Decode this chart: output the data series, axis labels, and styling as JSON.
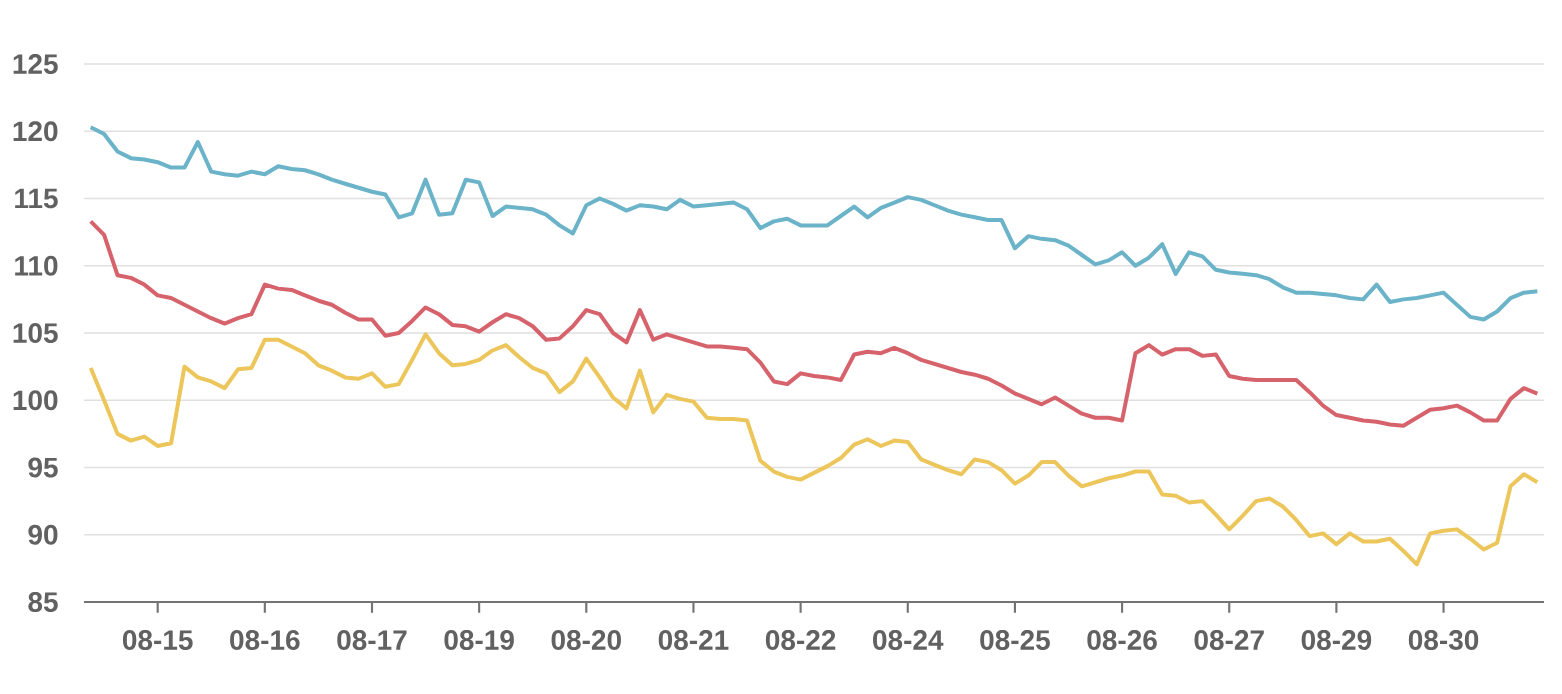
{
  "chart_data": {
    "type": "line",
    "categories": [
      null,
      null,
      null,
      null,
      null,
      "08-15",
      null,
      null,
      null,
      null,
      null,
      null,
      null,
      "08-16",
      null,
      null,
      null,
      null,
      null,
      null,
      null,
      "08-17",
      null,
      null,
      null,
      null,
      null,
      null,
      null,
      "08-19",
      null,
      null,
      null,
      null,
      null,
      null,
      null,
      "08-20",
      null,
      null,
      null,
      null,
      null,
      null,
      null,
      "08-21",
      null,
      null,
      null,
      null,
      null,
      null,
      null,
      "08-22",
      null,
      null,
      null,
      null,
      null,
      null,
      null,
      "08-24",
      null,
      null,
      null,
      null,
      null,
      null,
      null,
      "08-25",
      null,
      null,
      null,
      null,
      null,
      null,
      null,
      "08-26",
      null,
      null,
      null,
      null,
      null,
      null,
      null,
      "08-27",
      null,
      null,
      null,
      null,
      null,
      null,
      null,
      "08-29",
      null,
      null,
      null,
      null,
      null,
      null,
      null,
      "08-30",
      null,
      null,
      null,
      null,
      null,
      null,
      null
    ],
    "ylim": [
      85,
      125
    ],
    "yticks": [
      85,
      90,
      95,
      100,
      105,
      110,
      115,
      120,
      125
    ],
    "grid": "y",
    "series": [
      {
        "color": "#6ab3c8",
        "values": [
          120.3,
          119.8,
          118.5,
          118.0,
          117.9,
          117.7,
          117.3,
          117.3,
          119.2,
          117.0,
          116.8,
          116.7,
          117.0,
          116.8,
          117.4,
          117.2,
          117.1,
          116.8,
          116.4,
          116.1,
          115.8,
          115.5,
          115.3,
          113.6,
          113.9,
          116.4,
          113.8,
          113.9,
          116.4,
          116.2,
          113.7,
          114.4,
          114.3,
          114.2,
          113.8,
          113.0,
          112.4,
          114.5,
          115.0,
          114.6,
          114.1,
          114.5,
          114.4,
          114.2,
          114.9,
          114.4,
          114.5,
          114.6,
          114.7,
          114.2,
          112.8,
          113.3,
          113.5,
          113.0,
          113.0,
          113.0,
          113.7,
          114.4,
          113.6,
          114.3,
          114.7,
          115.1,
          114.9,
          114.5,
          114.1,
          113.8,
          113.6,
          113.4,
          113.4,
          111.3,
          112.2,
          112.0,
          111.9,
          111.5,
          110.8,
          110.1,
          110.4,
          111.0,
          110.0,
          110.6,
          111.6,
          109.4,
          111.0,
          110.7,
          109.7,
          109.5,
          109.4,
          109.3,
          109.0,
          108.4,
          108.0,
          108.0,
          107.9,
          107.8,
          107.6,
          107.5,
          108.6,
          107.3,
          107.5,
          107.6,
          107.8,
          108.0,
          107.1,
          106.2,
          106.0,
          106.6,
          107.6,
          108.0,
          108.1
        ]
      },
      {
        "color": "#d6636b",
        "values": [
          113.3,
          112.3,
          109.3,
          109.1,
          108.6,
          107.8,
          107.6,
          107.1,
          106.6,
          106.1,
          105.7,
          106.1,
          106.4,
          108.6,
          108.3,
          108.2,
          107.8,
          107.4,
          107.1,
          106.5,
          106.0,
          106.0,
          104.8,
          105.0,
          105.9,
          106.9,
          106.4,
          105.6,
          105.5,
          105.1,
          105.8,
          106.4,
          106.1,
          105.5,
          104.5,
          104.6,
          105.5,
          106.7,
          106.4,
          105.0,
          104.3,
          106.7,
          104.5,
          104.9,
          104.6,
          104.3,
          104.0,
          104.0,
          103.9,
          103.8,
          102.8,
          101.4,
          101.2,
          102.0,
          101.8,
          101.7,
          101.5,
          103.4,
          103.6,
          103.5,
          103.9,
          103.5,
          103.0,
          102.7,
          102.4,
          102.1,
          101.9,
          101.6,
          101.1,
          100.5,
          100.1,
          99.7,
          100.2,
          99.6,
          99.0,
          98.7,
          98.7,
          98.5,
          103.5,
          104.1,
          103.4,
          103.8,
          103.8,
          103.3,
          103.4,
          101.8,
          101.6,
          101.5,
          101.5,
          101.5,
          101.5,
          100.6,
          99.6,
          98.9,
          98.7,
          98.5,
          98.4,
          98.2,
          98.1,
          98.7,
          99.3,
          99.4,
          99.6,
          99.1,
          98.5,
          98.5,
          100.1,
          100.9,
          100.5
        ]
      },
      {
        "color": "#ecc65a",
        "values": [
          102.4,
          100.0,
          97.5,
          97.0,
          97.3,
          96.6,
          96.8,
          102.5,
          101.7,
          101.4,
          100.9,
          102.3,
          102.4,
          104.5,
          104.5,
          104.0,
          103.5,
          102.6,
          102.2,
          101.7,
          101.6,
          102.0,
          101.0,
          101.2,
          103.0,
          104.9,
          103.5,
          102.6,
          102.7,
          103.0,
          103.7,
          104.1,
          103.2,
          102.4,
          102.0,
          100.6,
          101.4,
          103.1,
          101.7,
          100.2,
          99.4,
          102.2,
          99.1,
          100.4,
          100.1,
          99.9,
          98.7,
          98.6,
          98.6,
          98.5,
          95.5,
          94.7,
          94.3,
          94.1,
          94.6,
          95.1,
          95.7,
          96.7,
          97.1,
          96.6,
          97.0,
          96.9,
          95.6,
          95.2,
          94.8,
          94.5,
          95.6,
          95.4,
          94.8,
          93.8,
          94.4,
          95.4,
          95.4,
          94.4,
          93.6,
          93.9,
          94.2,
          94.4,
          94.7,
          94.7,
          93.0,
          92.9,
          92.4,
          92.5,
          91.5,
          90.4,
          91.4,
          92.5,
          92.7,
          92.1,
          91.1,
          89.9,
          90.1,
          89.3,
          90.1,
          89.5,
          89.5,
          89.7,
          88.8,
          87.8,
          90.1,
          90.3,
          90.4,
          89.7,
          88.9,
          89.4,
          93.6,
          94.5,
          93.9
        ]
      }
    ]
  }
}
